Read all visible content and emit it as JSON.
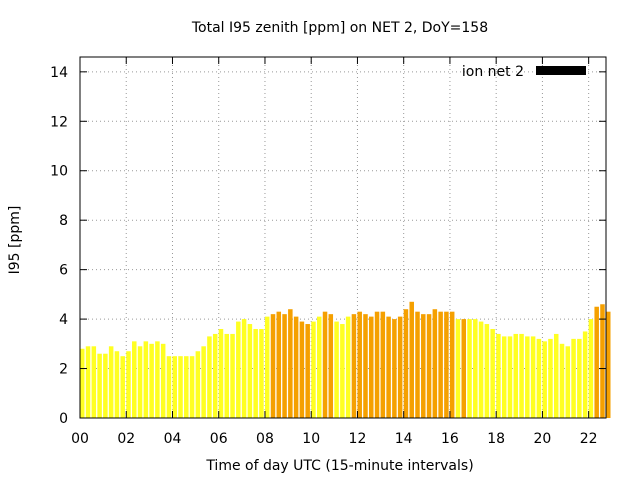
{
  "chart_data": {
    "type": "bar",
    "title": "Total I95 zenith [ppm] on NET 2, DoY=158",
    "xlabel": "Time of day UTC (15-minute intervals)",
    "ylabel": "I95 [ppm]",
    "xlim": [
      0,
      22.75
    ],
    "ylim": [
      0,
      14.6
    ],
    "x_ticks": [
      {
        "value": 0,
        "label": "00"
      },
      {
        "value": 2,
        "label": "02"
      },
      {
        "value": 4,
        "label": "04"
      },
      {
        "value": 6,
        "label": "06"
      },
      {
        "value": 8,
        "label": "08"
      },
      {
        "value": 10,
        "label": "10"
      },
      {
        "value": 12,
        "label": "12"
      },
      {
        "value": 14,
        "label": "14"
      },
      {
        "value": 16,
        "label": "16"
      },
      {
        "value": 18,
        "label": "18"
      },
      {
        "value": 20,
        "label": "20"
      },
      {
        "value": 22,
        "label": "22"
      }
    ],
    "y_ticks": [
      {
        "value": 0,
        "label": "0"
      },
      {
        "value": 2,
        "label": "2"
      },
      {
        "value": 4,
        "label": "4"
      },
      {
        "value": 6,
        "label": "6"
      },
      {
        "value": 8,
        "label": "8"
      },
      {
        "value": 10,
        "label": "10"
      },
      {
        "value": 12,
        "label": "12"
      },
      {
        "value": 14,
        "label": "14"
      }
    ],
    "grid": true,
    "legend": {
      "position": "top-right",
      "entries": [
        {
          "label": "ion net 2",
          "color": "#000000"
        }
      ]
    },
    "colors": {
      "low": "#ffff22",
      "high": "#f5a000"
    },
    "bar_interval_hours": 0.25,
    "series": [
      {
        "name": "ion net 2",
        "values": [
          2.8,
          2.9,
          2.9,
          2.6,
          2.6,
          2.9,
          2.7,
          2.5,
          2.7,
          3.1,
          2.9,
          3.1,
          3.0,
          3.1,
          3.0,
          2.5,
          2.5,
          2.5,
          2.5,
          2.5,
          2.7,
          2.9,
          3.3,
          3.4,
          3.6,
          3.4,
          3.4,
          3.9,
          4.0,
          3.8,
          3.6,
          3.6,
          4.1,
          4.2,
          4.3,
          4.2,
          4.4,
          4.1,
          3.9,
          3.8,
          3.9,
          4.1,
          4.3,
          4.2,
          3.9,
          3.8,
          4.1,
          4.2,
          4.3,
          4.2,
          4.1,
          4.3,
          4.3,
          4.1,
          4.0,
          4.1,
          4.4,
          4.7,
          4.3,
          4.2,
          4.2,
          4.4,
          4.3,
          4.3,
          4.3,
          4.0,
          4.0,
          4.0,
          4.0,
          3.9,
          3.8,
          3.6,
          3.4,
          3.3,
          3.3,
          3.4,
          3.4,
          3.3,
          3.3,
          3.2,
          3.1,
          3.2,
          3.4,
          3.0,
          2.9,
          3.2,
          3.2,
          3.5,
          4.0,
          4.5,
          4.6,
          4.3
        ],
        "levels": [
          0,
          0,
          0,
          0,
          0,
          0,
          0,
          0,
          0,
          0,
          0,
          0,
          0,
          0,
          0,
          0,
          0,
          0,
          0,
          0,
          0,
          0,
          0,
          0,
          0,
          0,
          0,
          0,
          0,
          0,
          0,
          0,
          0,
          1,
          1,
          1,
          1,
          1,
          1,
          1,
          0,
          0,
          1,
          1,
          0,
          0,
          0,
          1,
          1,
          1,
          1,
          1,
          1,
          1,
          1,
          1,
          1,
          1,
          1,
          1,
          1,
          1,
          1,
          1,
          1,
          0,
          1,
          0,
          0,
          0,
          0,
          0,
          0,
          0,
          0,
          0,
          0,
          0,
          0,
          0,
          0,
          0,
          0,
          0,
          0,
          0,
          0,
          0,
          0,
          1,
          1,
          1
        ]
      }
    ]
  }
}
